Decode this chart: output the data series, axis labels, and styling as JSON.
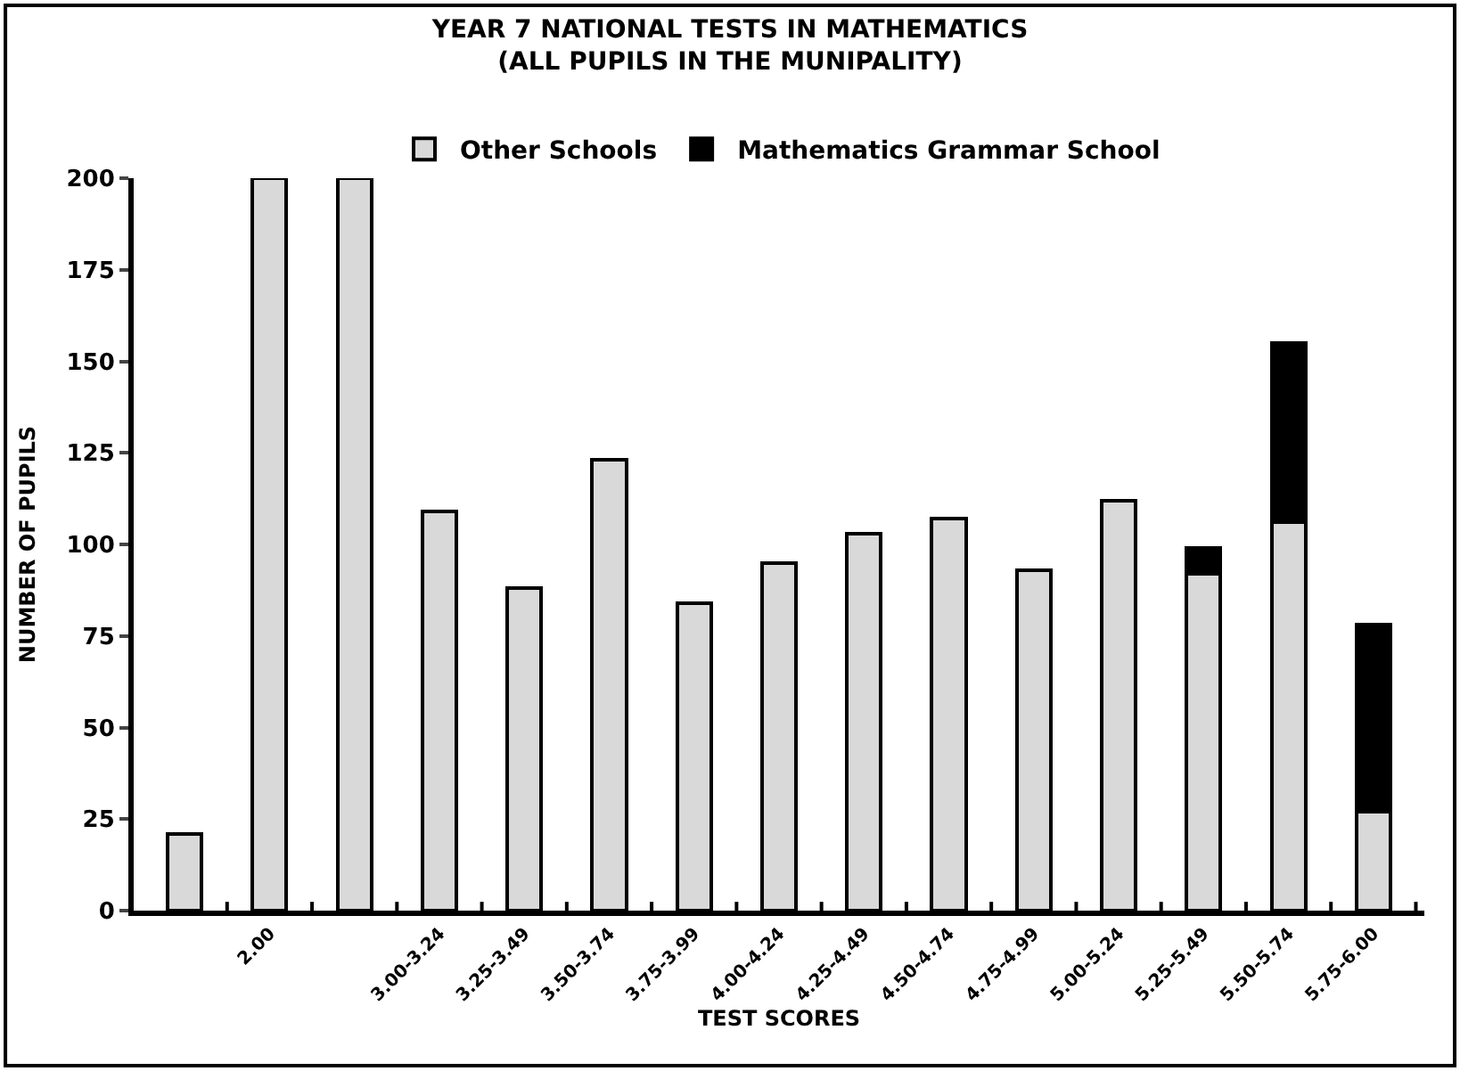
{
  "chart_data": {
    "type": "bar",
    "title": "YEAR 7 NATIONAL TESTS IN MATHEMATICS\n(ALL PUPILS IN THE MUNIPALITY)",
    "xlabel": "TEST SCORES",
    "ylabel": "NUMBER OF PUPILS",
    "categories": [
      null,
      "2.00",
      null,
      "3.00-3.24",
      "3.25-3.49",
      "3.50-3.74",
      "3.75-3.99",
      "4.00-4.24",
      "4.25-4.49",
      "4.50-4.74",
      "4.75-4.99",
      "5.00-5.24",
      "5.25-5.49",
      "5.50-5.74",
      "5.75-6.00"
    ],
    "series": [
      {
        "name": "Other Schools",
        "color": "#d9d9d9",
        "values": [
          21,
          200,
          200,
          109,
          88,
          123,
          84,
          95,
          103,
          107,
          93,
          112,
          92,
          106,
          27
        ]
      },
      {
        "name": "Mathematics Grammar School",
        "color": "#000000",
        "values": [
          0,
          0,
          0,
          0,
          0,
          0,
          0,
          0,
          0,
          0,
          0,
          0,
          7,
          49,
          51
        ]
      }
    ],
    "stacked": true,
    "ylim": [
      0,
      200
    ],
    "yticks": [
      0,
      25,
      50,
      75,
      100,
      125,
      150,
      175,
      200
    ],
    "legend": "top"
  }
}
